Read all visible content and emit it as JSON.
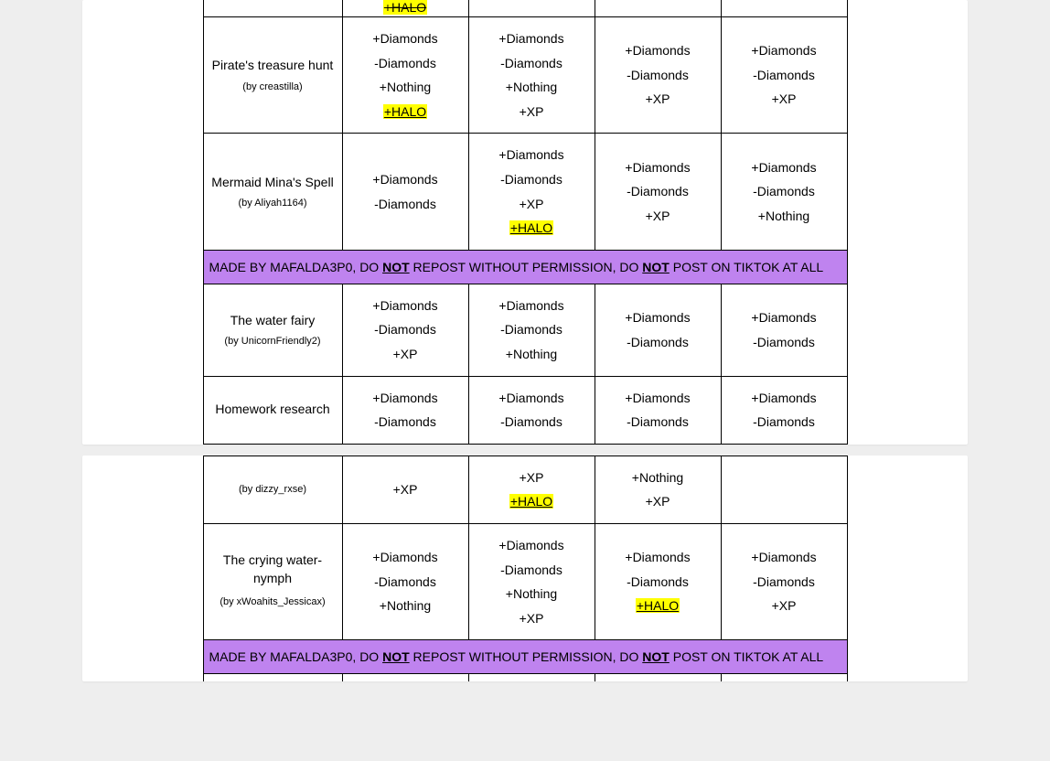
{
  "colors": {
    "page_bg": "#eeeeee",
    "card_bg": "#ffffff",
    "border": "#000000",
    "halo_bg": "#ffff00",
    "banner_bg": "#bf83ef",
    "text": "#000000"
  },
  "labels": {
    "plus_diamonds": "+Diamonds",
    "minus_diamonds": "-Diamonds",
    "plus_nothing": "+Nothing",
    "plus_xp": "+XP",
    "plus_halo": "+HALO"
  },
  "banner": {
    "pre": "MADE BY MAFALDA3P0, DO ",
    "not": "NOT",
    "mid": " REPOST WITHOUT PERMISSION, DO ",
    "post": " POST ON TIKTOK AT ALL"
  },
  "topPartialHalo": "+HALO",
  "rows1": [
    {
      "title": "Pirate's treasure hunt",
      "by": "(by creastilla)",
      "cells": [
        [
          "+Diamonds",
          "-Diamonds",
          "+Nothing",
          "HALO"
        ],
        [
          "+Diamonds",
          "-Diamonds",
          "+Nothing",
          "+XP"
        ],
        [
          "+Diamonds",
          "-Diamonds",
          "+XP"
        ],
        [
          "+Diamonds",
          "-Diamonds",
          "+XP"
        ]
      ]
    },
    {
      "title": "Mermaid Mina's Spell",
      "by": "(by Aliyah1164)",
      "cells": [
        [
          "+Diamonds",
          "-Diamonds"
        ],
        [
          "+Diamonds",
          "-Diamonds",
          "+XP",
          "HALO"
        ],
        [
          "+Diamonds",
          "-Diamonds",
          "+XP"
        ],
        [
          "+Diamonds",
          "-Diamonds",
          "+Nothing"
        ]
      ]
    }
  ],
  "rows1b": [
    {
      "title": "The water fairy",
      "by": "(by UnicornFriendly2)",
      "cells": [
        [
          "+Diamonds",
          "-Diamonds",
          "+XP"
        ],
        [
          "+Diamonds",
          "-Diamonds",
          "+Nothing"
        ],
        [
          "+Diamonds",
          "-Diamonds"
        ],
        [
          "+Diamonds",
          "-Diamonds"
        ]
      ]
    },
    {
      "title": "Homework research",
      "by": "",
      "cells": [
        [
          "+Diamonds",
          "-Diamonds"
        ],
        [
          "+Diamonds",
          "-Diamonds"
        ],
        [
          "+Diamonds",
          "-Diamonds"
        ],
        [
          "+Diamonds",
          "-Diamonds"
        ]
      ]
    }
  ],
  "rows2top": {
    "by": "(by dizzy_rxse)",
    "cells": [
      [
        "+XP"
      ],
      [
        "+XP",
        "HALO"
      ],
      [
        "+Nothing",
        "+XP"
      ],
      []
    ]
  },
  "rows2": [
    {
      "title": "The crying water-nymph",
      "by": "(by xWoahits_Jessicax)",
      "cells": [
        [
          "+Diamonds",
          "-Diamonds",
          "+Nothing"
        ],
        [
          "+Diamonds",
          "-Diamonds",
          "+Nothing",
          "+XP"
        ],
        [
          "+Diamonds",
          "-Diamonds",
          "HALO"
        ],
        [
          "+Diamonds",
          "-Diamonds",
          "+XP"
        ]
      ]
    }
  ]
}
